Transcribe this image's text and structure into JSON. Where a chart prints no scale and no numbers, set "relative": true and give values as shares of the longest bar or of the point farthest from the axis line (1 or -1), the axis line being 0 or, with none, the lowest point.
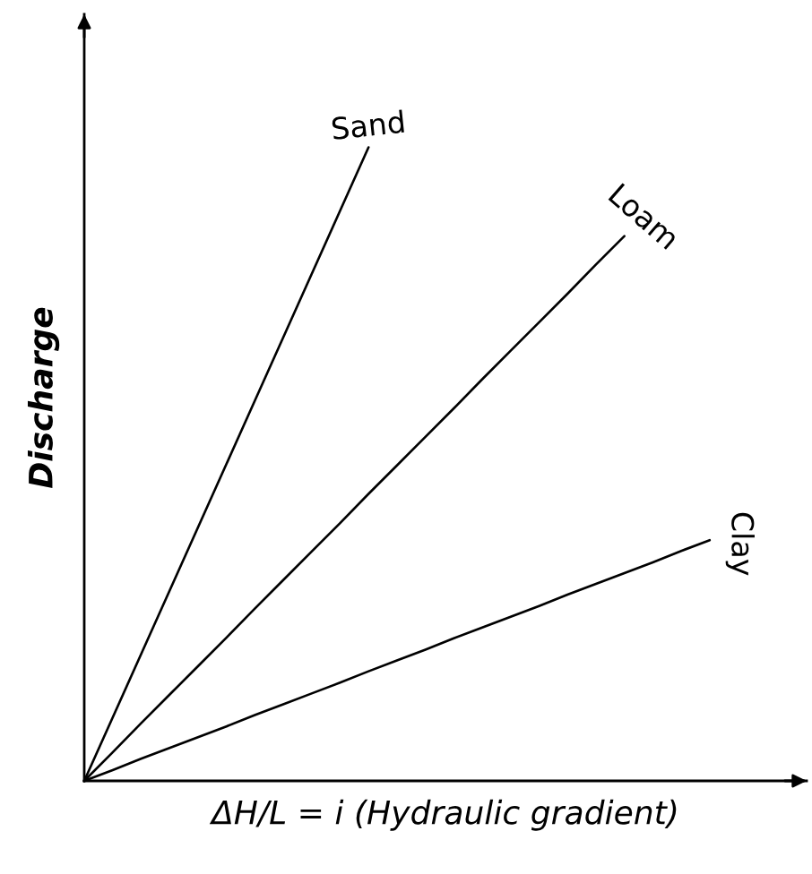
{
  "chart_data": {
    "type": "line",
    "relative": true,
    "xlabel": "ΔH/L = i (Hydraulic gradient)",
    "ylabel": "Discharge",
    "categories": [
      null,
      null,
      null,
      null,
      null,
      null,
      null,
      null,
      null,
      null,
      null,
      null,
      null,
      null,
      null,
      null,
      null,
      null,
      null,
      null,
      null,
      null,
      null
    ],
    "series": [
      {
        "name": "Sand",
        "color": "#000000",
        "values": [
          0,
          0.1,
          0.2,
          0.3,
          0.4,
          0.5,
          0.6,
          0.7,
          0.8,
          0.9,
          1,
          null,
          null,
          null,
          null,
          null,
          null,
          null,
          null,
          null,
          null,
          null,
          null
        ]
      },
      {
        "name": "Loam",
        "color": "#000000",
        "values": [
          0,
          0.045,
          0.091,
          0.136,
          0.181,
          0.226,
          0.272,
          0.317,
          0.362,
          0.407,
          0.453,
          0.498,
          0.543,
          0.588,
          0.634,
          0.679,
          0.724,
          0.769,
          0.815,
          0.86,
          null,
          null,
          null
        ]
      },
      {
        "name": "Clay",
        "color": "#000000",
        "values": [
          0,
          0.017,
          0.035,
          0.052,
          0.069,
          0.086,
          0.104,
          0.121,
          0.138,
          0.155,
          0.173,
          0.19,
          0.207,
          0.225,
          0.242,
          0.259,
          0.276,
          0.294,
          0.311,
          0.328,
          0.345,
          0.363,
          0.38
        ]
      }
    ]
  }
}
